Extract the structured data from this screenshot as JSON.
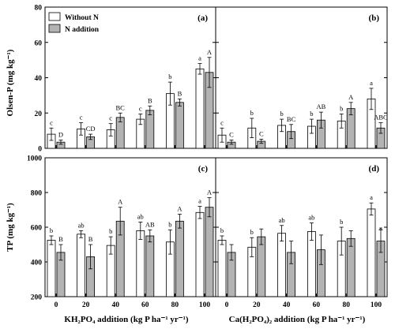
{
  "legend": [
    {
      "label": "Without N",
      "color": "#ffffff"
    },
    {
      "label": "N addition",
      "color": "#b3b3b3"
    }
  ],
  "chart_data": [
    {
      "type": "bar",
      "panel": "(a)",
      "ylabel": "Olsen-P (mg kg⁻¹)",
      "xlabel": "",
      "ylim": [
        0,
        80
      ],
      "yticks": [
        0,
        20,
        40,
        60,
        80
      ],
      "categories": [
        "0",
        "20",
        "40",
        "60",
        "80",
        "100"
      ],
      "series": [
        {
          "name": "Without N",
          "values": [
            8,
            11,
            10.5,
            16.5,
            31,
            45
          ],
          "errors": [
            3.5,
            3.5,
            3.5,
            3,
            6.5,
            3
          ],
          "letters": [
            "c",
            "c",
            "c",
            "c",
            "b",
            "a"
          ]
        },
        {
          "name": "N addition",
          "values": [
            3.5,
            6.5,
            17.5,
            21.5,
            26,
            43
          ],
          "errors": [
            1.2,
            1.5,
            2.5,
            2.5,
            2,
            8.5
          ],
          "letters": [
            "D",
            "CD",
            "BC",
            "B",
            "B",
            "A"
          ]
        }
      ]
    },
    {
      "type": "bar",
      "panel": "(b)",
      "ylabel": "",
      "xlabel": "",
      "ylim": [
        0,
        80
      ],
      "yticks": [
        0,
        20,
        40,
        60,
        80
      ],
      "categories": [
        "0",
        "20",
        "40",
        "60",
        "80",
        "100"
      ],
      "series": [
        {
          "name": "Without N",
          "values": [
            7.5,
            11.5,
            13,
            12.5,
            15.5,
            28
          ],
          "errors": [
            4,
            5.5,
            3.5,
            4,
            4,
            6
          ],
          "letters": [
            "c",
            "b",
            "b",
            "b",
            "b",
            "a"
          ]
        },
        {
          "name": "N addition",
          "values": [
            3.5,
            4,
            9.5,
            16,
            22.5,
            11.5
          ],
          "errors": [
            1.2,
            1.2,
            4,
            4.5,
            3.5,
            3
          ],
          "letters": [
            "C",
            "C",
            "BC",
            "AB",
            "A",
            "ABC"
          ]
        }
      ]
    },
    {
      "type": "bar",
      "panel": "(c)",
      "ylabel": "TP (mg kg⁻¹)",
      "xlabel": "KH₂PO₄ addition (kg P ha⁻¹ yr⁻¹)",
      "ylim": [
        200,
        1000
      ],
      "yticks": [
        200,
        400,
        600,
        800,
        1000
      ],
      "categories": [
        "0",
        "20",
        "40",
        "60",
        "80",
        "100"
      ],
      "series": [
        {
          "name": "Without N",
          "values": [
            525,
            560,
            495,
            580,
            515,
            685
          ],
          "errors": [
            25,
            20,
            50,
            50,
            70,
            35
          ],
          "letters": [
            "b",
            "ab",
            "b",
            "ab",
            "b",
            "a"
          ]
        },
        {
          "name": "N addition",
          "values": [
            455,
            430,
            635,
            550,
            635,
            715
          ],
          "errors": [
            45,
            70,
            80,
            35,
            40,
            55
          ],
          "letters": [
            "B",
            "B",
            "A",
            "AB",
            "A",
            "A"
          ]
        }
      ]
    },
    {
      "type": "bar",
      "panel": "(d)",
      "ylabel": "",
      "xlabel": "Ca(H₂PO₄)₂ addition (kg P ha⁻¹ yr⁻¹)",
      "ylim": [
        200,
        1000
      ],
      "yticks": [
        200,
        400,
        600,
        800,
        1000
      ],
      "categories": [
        "0",
        "20",
        "40",
        "60",
        "80",
        "100"
      ],
      "series": [
        {
          "name": "Without N",
          "values": [
            525,
            485,
            565,
            575,
            520,
            705
          ],
          "errors": [
            25,
            55,
            45,
            50,
            80,
            35
          ],
          "letters": [
            "b",
            "b",
            "ab",
            "ab",
            "b",
            "a"
          ]
        },
        {
          "name": "N addition",
          "values": [
            455,
            545,
            455,
            470,
            535,
            520
          ],
          "errors": [
            45,
            45,
            65,
            85,
            45,
            65
          ],
          "letters": [
            "",
            "",
            "",
            "",
            "",
            "*"
          ]
        }
      ]
    }
  ]
}
